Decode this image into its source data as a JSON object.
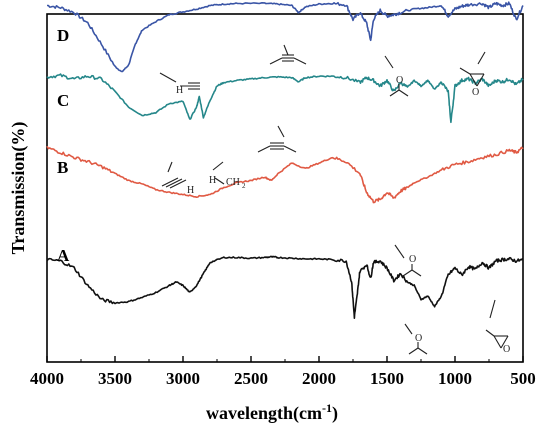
{
  "chart_data": {
    "type": "line",
    "xlabel": "wavelength(cm",
    "xlabel_sup": "-1",
    "xlabel_end": ")",
    "ylabel": "Transmission(%)",
    "xlim": [
      4000,
      500
    ],
    "x_reversed": true,
    "xticks": [
      "4000",
      "3500",
      "3000",
      "2500",
      "2000",
      "1500",
      "1000",
      "500"
    ],
    "grid": false,
    "series": [
      {
        "name": "D",
        "color": "#3a55a6",
        "offset": 4.0,
        "points": [
          [
            4000,
            0.95
          ],
          [
            3900,
            0.92
          ],
          [
            3800,
            0.85
          ],
          [
            3700,
            0.7
          ],
          [
            3600,
            0.4
          ],
          [
            3500,
            0.08
          ],
          [
            3450,
            0.0
          ],
          [
            3400,
            0.1
          ],
          [
            3350,
            0.4
          ],
          [
            3300,
            0.6
          ],
          [
            3200,
            0.72
          ],
          [
            3100,
            0.82
          ],
          [
            3000,
            0.86
          ],
          [
            2900,
            0.9
          ],
          [
            2800,
            0.95
          ],
          [
            2700,
            0.97
          ],
          [
            2600,
            0.98
          ],
          [
            2400,
            0.98
          ],
          [
            2300,
            0.97
          ],
          [
            2200,
            0.95
          ],
          [
            2150,
            0.85
          ],
          [
            2100,
            0.93
          ],
          [
            2000,
            0.97
          ],
          [
            1900,
            0.98
          ],
          [
            1800,
            0.96
          ],
          [
            1750,
            0.75
          ],
          [
            1700,
            0.85
          ],
          [
            1650,
            0.7
          ],
          [
            1620,
            0.45
          ],
          [
            1600,
            0.75
          ],
          [
            1550,
            0.88
          ],
          [
            1500,
            0.8
          ],
          [
            1450,
            0.82
          ],
          [
            1400,
            0.85
          ],
          [
            1300,
            0.9
          ],
          [
            1200,
            0.92
          ],
          [
            1100,
            0.95
          ],
          [
            1050,
            0.8
          ],
          [
            1000,
            0.9
          ],
          [
            950,
            0.94
          ],
          [
            900,
            0.96
          ],
          [
            800,
            0.98
          ],
          [
            750,
            0.92
          ],
          [
            700,
            0.98
          ],
          [
            650,
            0.95
          ],
          [
            600,
            0.98
          ],
          [
            550,
            0.75
          ],
          [
            500,
            0.95
          ]
        ]
      },
      {
        "name": "C",
        "color": "#25878a",
        "offset": 3.0,
        "points": [
          [
            4000,
            0.93
          ],
          [
            3900,
            0.95
          ],
          [
            3800,
            0.9
          ],
          [
            3700,
            0.94
          ],
          [
            3600,
            0.9
          ],
          [
            3500,
            0.72
          ],
          [
            3400,
            0.5
          ],
          [
            3300,
            0.38
          ],
          [
            3200,
            0.42
          ],
          [
            3100,
            0.55
          ],
          [
            3000,
            0.58
          ],
          [
            2950,
            0.32
          ],
          [
            2900,
            0.5
          ],
          [
            2880,
            0.65
          ],
          [
            2850,
            0.35
          ],
          [
            2800,
            0.6
          ],
          [
            2750,
            0.8
          ],
          [
            2700,
            0.85
          ],
          [
            2600,
            0.88
          ],
          [
            2500,
            0.9
          ],
          [
            2400,
            0.92
          ],
          [
            2300,
            0.93
          ],
          [
            2200,
            0.92
          ],
          [
            2150,
            0.86
          ],
          [
            2100,
            0.92
          ],
          [
            2000,
            0.94
          ],
          [
            1900,
            0.94
          ],
          [
            1800,
            0.92
          ],
          [
            1700,
            0.85
          ],
          [
            1650,
            0.92
          ],
          [
            1600,
            0.88
          ],
          [
            1550,
            0.8
          ],
          [
            1500,
            0.88
          ],
          [
            1450,
            0.72
          ],
          [
            1400,
            0.85
          ],
          [
            1350,
            0.78
          ],
          [
            1300,
            0.88
          ],
          [
            1250,
            0.8
          ],
          [
            1200,
            0.88
          ],
          [
            1150,
            0.75
          ],
          [
            1100,
            0.86
          ],
          [
            1050,
            0.72
          ],
          [
            1030,
            0.28
          ],
          [
            1000,
            0.8
          ],
          [
            950,
            0.88
          ],
          [
            900,
            0.9
          ],
          [
            850,
            0.84
          ],
          [
            800,
            0.9
          ],
          [
            750,
            0.8
          ],
          [
            700,
            0.88
          ],
          [
            650,
            0.86
          ],
          [
            600,
            0.9
          ],
          [
            550,
            0.82
          ],
          [
            500,
            0.9
          ]
        ]
      },
      {
        "name": "B",
        "color": "#e05a44",
        "offset": 2.0,
        "points": [
          [
            4000,
            0.92
          ],
          [
            3900,
            0.85
          ],
          [
            3800,
            0.78
          ],
          [
            3700,
            0.72
          ],
          [
            3600,
            0.65
          ],
          [
            3500,
            0.55
          ],
          [
            3400,
            0.45
          ],
          [
            3300,
            0.4
          ],
          [
            3200,
            0.32
          ],
          [
            3100,
            0.28
          ],
          [
            3000,
            0.25
          ],
          [
            2900,
            0.22
          ],
          [
            2800,
            0.25
          ],
          [
            2700,
            0.35
          ],
          [
            2600,
            0.42
          ],
          [
            2500,
            0.45
          ],
          [
            2400,
            0.5
          ],
          [
            2350,
            0.45
          ],
          [
            2300,
            0.55
          ],
          [
            2200,
            0.7
          ],
          [
            2100,
            0.62
          ],
          [
            2000,
            0.7
          ],
          [
            1900,
            0.78
          ],
          [
            1800,
            0.72
          ],
          [
            1700,
            0.55
          ],
          [
            1650,
            0.28
          ],
          [
            1600,
            0.15
          ],
          [
            1550,
            0.18
          ],
          [
            1500,
            0.28
          ],
          [
            1450,
            0.2
          ],
          [
            1400,
            0.3
          ],
          [
            1350,
            0.35
          ],
          [
            1300,
            0.42
          ],
          [
            1200,
            0.5
          ],
          [
            1100,
            0.6
          ],
          [
            1000,
            0.68
          ],
          [
            900,
            0.72
          ],
          [
            800,
            0.78
          ],
          [
            700,
            0.82
          ],
          [
            600,
            0.88
          ],
          [
            550,
            0.85
          ],
          [
            500,
            0.92
          ]
        ]
      },
      {
        "name": "A",
        "color": "#111111",
        "offset": 0.4,
        "points": [
          [
            4000,
            0.92
          ],
          [
            3900,
            0.9
          ],
          [
            3800,
            0.8
          ],
          [
            3700,
            0.55
          ],
          [
            3600,
            0.35
          ],
          [
            3500,
            0.3
          ],
          [
            3400,
            0.32
          ],
          [
            3300,
            0.38
          ],
          [
            3200,
            0.45
          ],
          [
            3100,
            0.55
          ],
          [
            3050,
            0.6
          ],
          [
            3000,
            0.55
          ],
          [
            2950,
            0.45
          ],
          [
            2900,
            0.55
          ],
          [
            2850,
            0.72
          ],
          [
            2800,
            0.88
          ],
          [
            2700,
            0.95
          ],
          [
            2600,
            0.95
          ],
          [
            2500,
            0.94
          ],
          [
            2400,
            0.95
          ],
          [
            2350,
            0.96
          ],
          [
            2300,
            0.95
          ],
          [
            2200,
            0.94
          ],
          [
            2100,
            0.93
          ],
          [
            2000,
            0.93
          ],
          [
            1900,
            0.92
          ],
          [
            1800,
            0.9
          ],
          [
            1760,
            0.6
          ],
          [
            1740,
            0.1
          ],
          [
            1720,
            0.4
          ],
          [
            1700,
            0.75
          ],
          [
            1650,
            0.85
          ],
          [
            1620,
            0.65
          ],
          [
            1600,
            0.88
          ],
          [
            1550,
            0.9
          ],
          [
            1500,
            0.8
          ],
          [
            1450,
            0.62
          ],
          [
            1400,
            0.72
          ],
          [
            1350,
            0.6
          ],
          [
            1300,
            0.55
          ],
          [
            1250,
            0.35
          ],
          [
            1200,
            0.4
          ],
          [
            1150,
            0.25
          ],
          [
            1100,
            0.4
          ],
          [
            1050,
            0.7
          ],
          [
            1000,
            0.8
          ],
          [
            950,
            0.7
          ],
          [
            900,
            0.82
          ],
          [
            850,
            0.78
          ],
          [
            800,
            0.88
          ],
          [
            750,
            0.8
          ],
          [
            700,
            0.9
          ],
          [
            650,
            0.92
          ],
          [
            600,
            0.93
          ],
          [
            550,
            0.9
          ],
          [
            500,
            0.92
          ]
        ]
      }
    ],
    "annotations": [
      {
        "series": "D",
        "text_h": "H",
        "group": "alkyne-CH"
      },
      {
        "series": "D",
        "group": "alkyne"
      },
      {
        "series": "D",
        "text_o": "O",
        "group": "carbonyl"
      },
      {
        "series": "D",
        "text_o": "O",
        "group": "epoxide"
      },
      {
        "series": "C",
        "group": "alkyne"
      },
      {
        "series": "C",
        "text_h": "H",
        "group": "alkyne-CH"
      },
      {
        "series": "C",
        "text_h": "H",
        "text_ch2": "CH",
        "sub": "2",
        "group": "methylene"
      },
      {
        "series": "B",
        "text_o": "O",
        "group": "carbonyl"
      },
      {
        "series": "A",
        "text_o": "O",
        "group": "carbonyl"
      },
      {
        "series": "A",
        "text_o": "O",
        "group": "epoxide"
      }
    ]
  }
}
